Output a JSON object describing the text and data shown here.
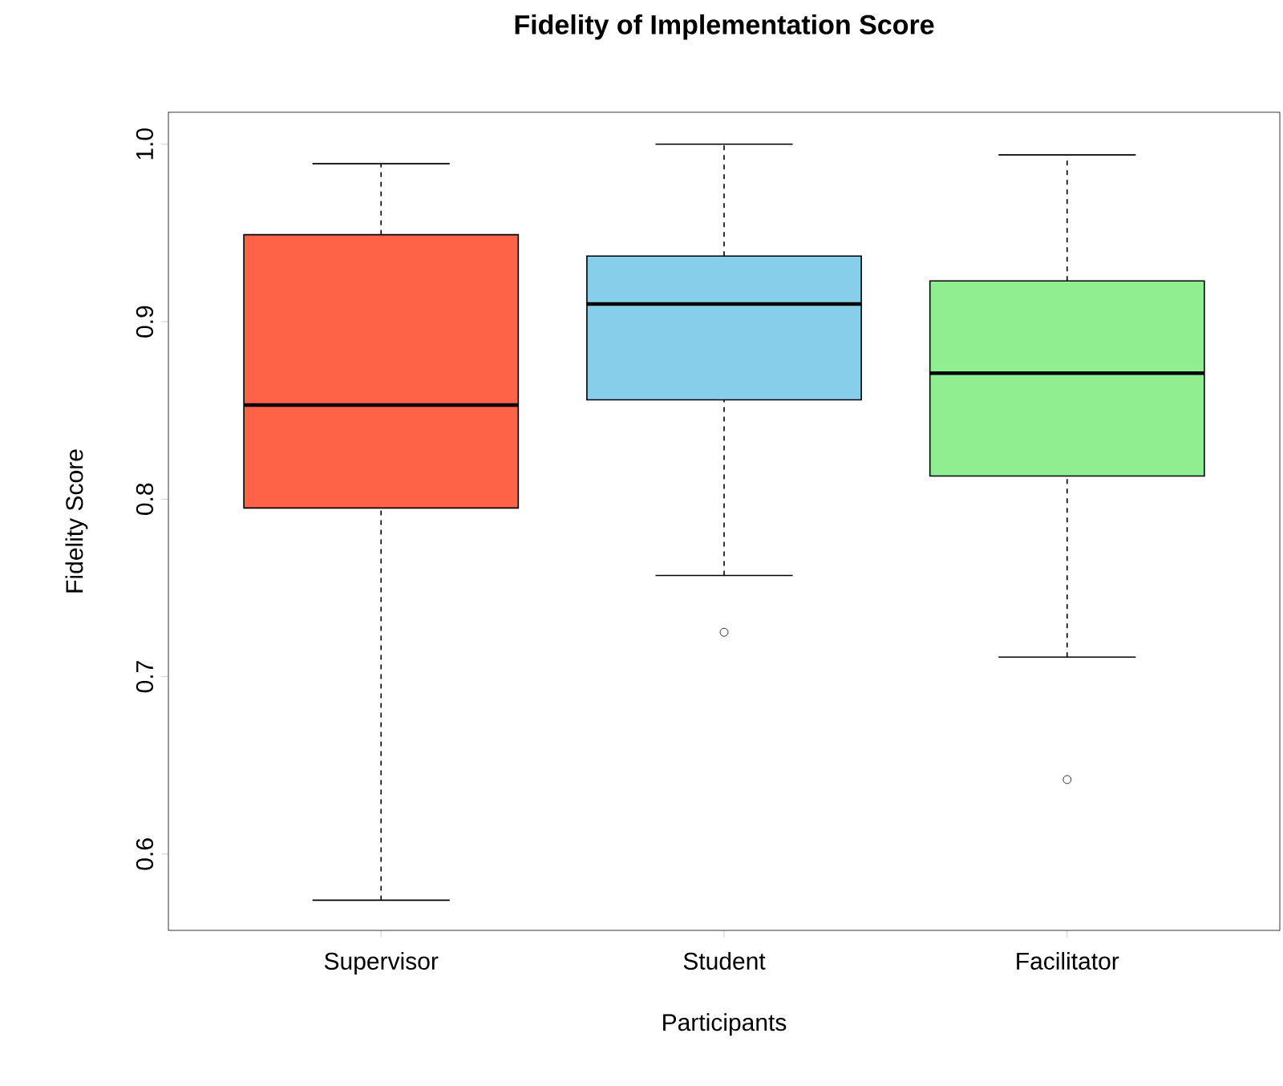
{
  "chart_data": {
    "type": "box",
    "title": "Fidelity of Implementation Score",
    "xlabel": "Participants",
    "ylabel": "Fidelity Score",
    "categories": [
      "Supervisor",
      "Student",
      "Facilitator"
    ],
    "colors": [
      "#ff6347",
      "#87ceeb",
      "#90ee90"
    ],
    "boxes": [
      {
        "low": 0.574,
        "q1": 0.795,
        "median": 0.853,
        "q3": 0.949,
        "high": 0.989
      },
      {
        "low": 0.757,
        "q1": 0.856,
        "median": 0.91,
        "q3": 0.937,
        "high": 1.0,
        "outliers": [
          0.725
        ]
      },
      {
        "low": 0.711,
        "q1": 0.813,
        "median": 0.871,
        "q3": 0.923,
        "high": 0.994,
        "outliers": [
          0.642
        ]
      }
    ],
    "ylim": [
      0.557,
      1.018
    ],
    "yticks": [
      0.6,
      0.7,
      0.8,
      0.9,
      {
        "value": 1.0,
        "label": "1.0"
      }
    ]
  }
}
